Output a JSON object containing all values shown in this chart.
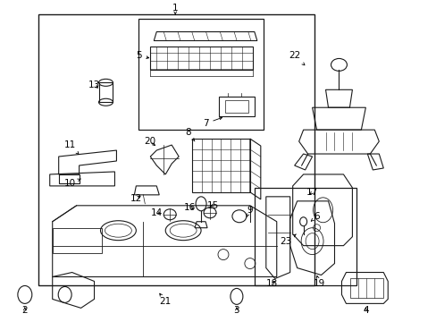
{
  "bg_color": "#ffffff",
  "line_color": "#1a1a1a",
  "fig_width": 4.89,
  "fig_height": 3.6,
  "dpi": 100,
  "font_size_label": 7.5
}
